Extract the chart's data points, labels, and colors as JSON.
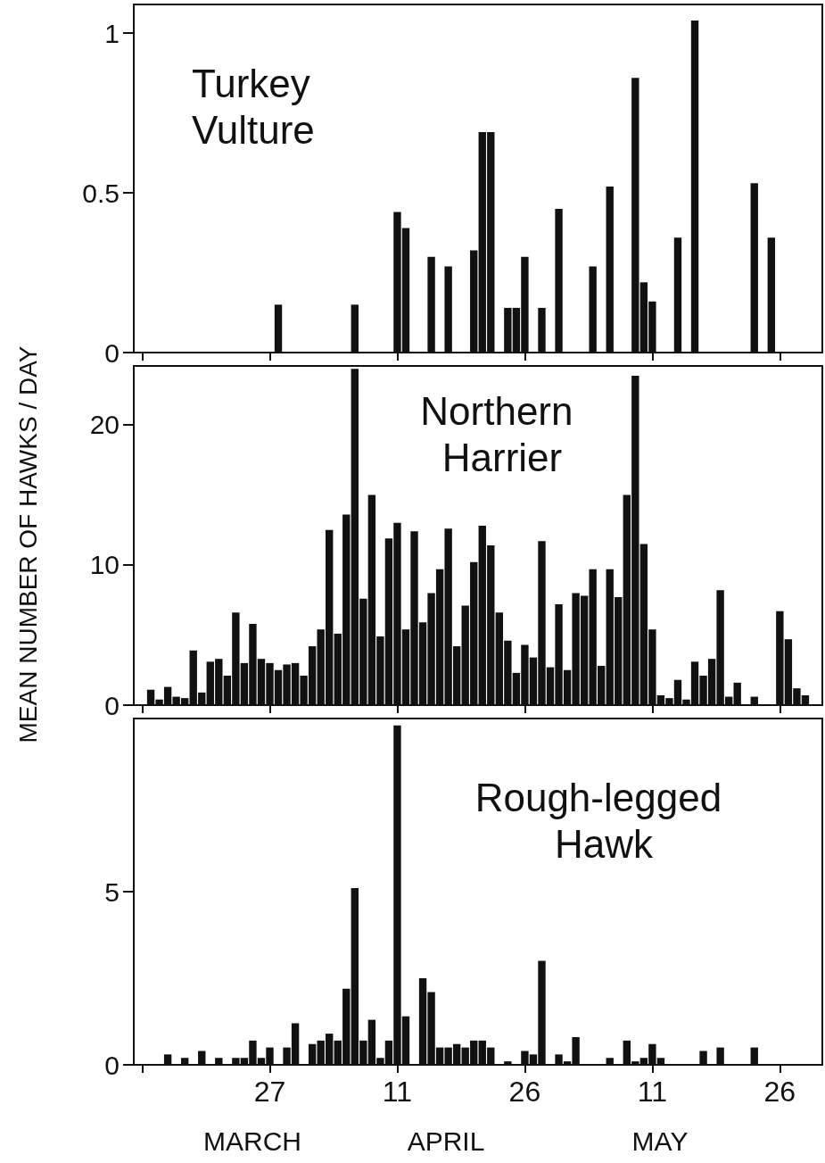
{
  "chart_data": [
    {
      "type": "bar",
      "title": "Turkey Vulture",
      "color": "#111111",
      "tick_labels": "y",
      "xlim": [
        "--03-11",
        "--05-31"
      ],
      "xticks": [
        {
          "value": "--03-12",
          "label": null
        },
        {
          "value": "--03-27",
          "label": null
        },
        {
          "value": "--04-11",
          "label": null
        },
        {
          "value": "--04-26",
          "label": null
        },
        {
          "value": "--05-11",
          "label": null
        },
        {
          "value": "--05-26",
          "label": null
        }
      ],
      "ylim": [
        0,
        1.09
      ],
      "yticks": [
        0,
        0.5,
        1
      ],
      "x": [
        "--03-28",
        "--04-06",
        "--04-11",
        "--04-12",
        "--04-15",
        "--04-17",
        "--04-20",
        "--04-21",
        "--04-22",
        "--04-24",
        "--04-25",
        "--04-26",
        "--04-28",
        "--04-30",
        "--05-04",
        "--05-06",
        "--05-09",
        "--05-10",
        "--05-11",
        "--05-14",
        "--05-16",
        "--05-23",
        "--05-25"
      ],
      "values": [
        0.15,
        0.15,
        0.44,
        0.39,
        0.3,
        0.27,
        0.32,
        0.69,
        0.69,
        0.14,
        0.14,
        0.3,
        0.14,
        0.45,
        0.27,
        0.52,
        0.86,
        0.22,
        0.16,
        0.36,
        1.04,
        0.53,
        0.36
      ]
    },
    {
      "type": "bar",
      "title": "Northern Harrier",
      "ylabel": "MEAN NUMBER OF HAWKS / DAY",
      "color": "#111111",
      "tick_labels": "y",
      "xlim": [
        "--03-11",
        "--05-31"
      ],
      "xticks": [
        {
          "value": "--03-12",
          "label": null
        },
        {
          "value": "--03-27",
          "label": null
        },
        {
          "value": "--04-11",
          "label": null
        },
        {
          "value": "--04-26",
          "label": null
        },
        {
          "value": "--05-11",
          "label": null
        },
        {
          "value": "--05-26",
          "label": null
        }
      ],
      "ylim": [
        0,
        24.2
      ],
      "yticks": [
        0,
        10,
        20
      ],
      "x": [
        "--03-13",
        "--03-14",
        "--03-15",
        "--03-16",
        "--03-17",
        "--03-18",
        "--03-19",
        "--03-20",
        "--03-21",
        "--03-22",
        "--03-23",
        "--03-24",
        "--03-25",
        "--03-26",
        "--03-27",
        "--03-28",
        "--03-29",
        "--03-30",
        "--03-31",
        "--04-01",
        "--04-02",
        "--04-03",
        "--04-04",
        "--04-05",
        "--04-06",
        "--04-07",
        "--04-08",
        "--04-09",
        "--04-10",
        "--04-11",
        "--04-12",
        "--04-13",
        "--04-14",
        "--04-15",
        "--04-16",
        "--04-17",
        "--04-18",
        "--04-19",
        "--04-20",
        "--04-21",
        "--04-22",
        "--04-23",
        "--04-24",
        "--04-25",
        "--04-26",
        "--04-27",
        "--04-28",
        "--04-29",
        "--04-30",
        "--05-01",
        "--05-02",
        "--05-03",
        "--05-04",
        "--05-05",
        "--05-06",
        "--05-07",
        "--05-08",
        "--05-09",
        "--05-10",
        "--05-11",
        "--05-12",
        "--05-13",
        "--05-14",
        "--05-15",
        "--05-16",
        "--05-17",
        "--05-18",
        "--05-19",
        "--05-20",
        "--05-21",
        "--05-23",
        "--05-26",
        "--05-27",
        "--05-28",
        "--05-29"
      ],
      "values": [
        1.1,
        0.4,
        1.3,
        0.6,
        0.5,
        3.9,
        0.9,
        3.1,
        3.3,
        2.1,
        6.6,
        3.0,
        5.8,
        3.3,
        3.0,
        2.5,
        2.9,
        3.0,
        2.1,
        4.2,
        5.4,
        12.5,
        5.1,
        13.6,
        24.0,
        7.6,
        15.0,
        4.9,
        11.9,
        13.0,
        5.4,
        12.4,
        5.9,
        8.0,
        9.7,
        12.6,
        4.2,
        7.1,
        10.2,
        12.8,
        11.4,
        6.6,
        4.6,
        2.3,
        4.3,
        3.4,
        11.7,
        2.7,
        7.2,
        2.5,
        8.0,
        7.8,
        9.7,
        2.8,
        9.7,
        7.7,
        15.0,
        23.5,
        11.5,
        5.4,
        0.7,
        0.5,
        1.8,
        0.4,
        3.1,
        2.1,
        3.3,
        8.2,
        0.6,
        1.6,
        0.6,
        6.7,
        4.7,
        1.2,
        0.7
      ]
    },
    {
      "type": "bar",
      "title": "Rough-legged Hawk",
      "color": "#111111",
      "annotations": [
        "MARCH",
        "APRIL",
        "MAY"
      ],
      "xlim": [
        "--03-11",
        "--05-31"
      ],
      "xticks": [
        {
          "value": "--03-12",
          "label": null
        },
        {
          "value": "--03-27",
          "label": "27"
        },
        {
          "value": "--04-11",
          "label": "11"
        },
        {
          "value": "--04-26",
          "label": "26"
        },
        {
          "value": "--05-11",
          "label": "11"
        },
        {
          "value": "--05-26",
          "label": "26"
        }
      ],
      "ylim": [
        0,
        10
      ],
      "yticks": [
        0,
        5
      ],
      "x": [
        "--03-15",
        "--03-17",
        "--03-19",
        "--03-21",
        "--03-23",
        "--03-24",
        "--03-25",
        "--03-26",
        "--03-27",
        "--03-29",
        "--03-30",
        "--04-01",
        "--04-02",
        "--04-03",
        "--04-04",
        "--04-05",
        "--04-06",
        "--04-07",
        "--04-08",
        "--04-09",
        "--04-10",
        "--04-11",
        "--04-12",
        "--04-14",
        "--04-15",
        "--04-16",
        "--04-17",
        "--04-18",
        "--04-19",
        "--04-20",
        "--04-21",
        "--04-22",
        "--04-24",
        "--04-26",
        "--04-27",
        "--04-28",
        "--04-30",
        "--05-01",
        "--05-02",
        "--05-06",
        "--05-08",
        "--05-09",
        "--05-10",
        "--05-11",
        "--05-12",
        "--05-17",
        "--05-19",
        "--05-23"
      ],
      "values": [
        0.3,
        0.2,
        0.4,
        0.2,
        0.2,
        0.2,
        0.7,
        0.2,
        0.5,
        0.5,
        1.2,
        0.6,
        0.7,
        0.9,
        0.7,
        2.2,
        5.1,
        0.7,
        1.3,
        0.2,
        0.7,
        9.8,
        1.4,
        2.5,
        2.1,
        0.5,
        0.5,
        0.6,
        0.5,
        0.7,
        0.7,
        0.5,
        0.1,
        0.4,
        0.3,
        3.0,
        0.3,
        0.1,
        0.8,
        0.2,
        0.7,
        0.1,
        0.2,
        0.6,
        0.2,
        0.4,
        0.5,
        0.5
      ]
    }
  ]
}
